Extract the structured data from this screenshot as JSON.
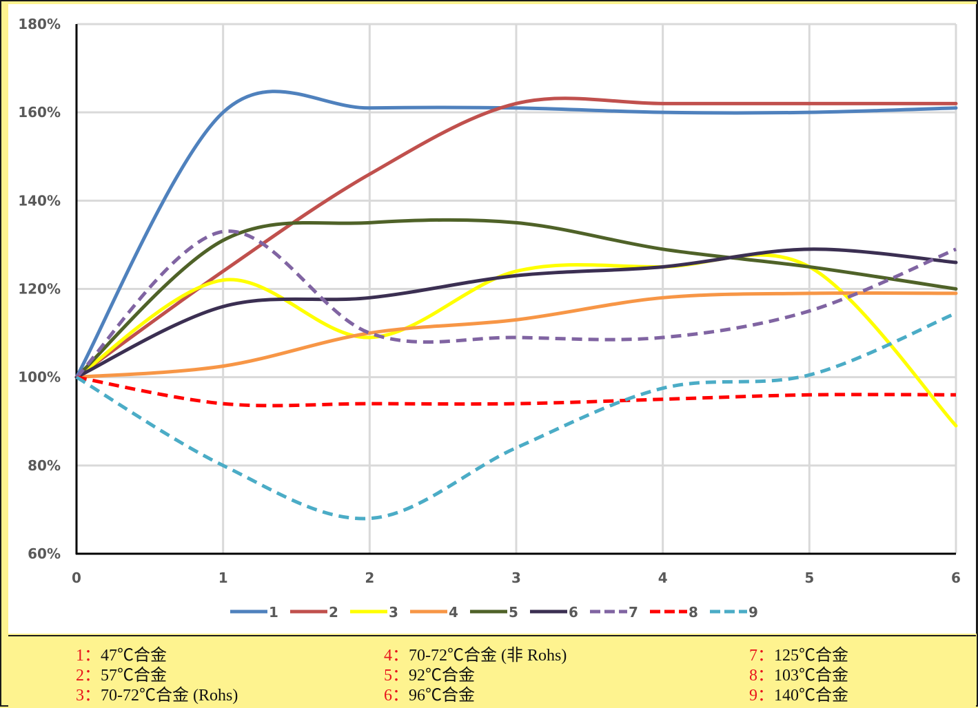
{
  "chart_data": {
    "type": "line",
    "title": "",
    "xlabel": "",
    "ylabel": "",
    "x": [
      0,
      1,
      2,
      3,
      4,
      5,
      6
    ],
    "xlim": [
      0,
      6
    ],
    "ylim": [
      0.6,
      1.8
    ],
    "y_ticks": [
      0.6,
      0.8,
      1.0,
      1.2,
      1.4,
      1.6,
      1.8
    ],
    "y_tick_labels": [
      "60%",
      "80%",
      "100%",
      "120%",
      "140%",
      "160%",
      "180%"
    ],
    "x_tick_labels": [
      "0",
      "1",
      "2",
      "3",
      "4",
      "5",
      "6"
    ],
    "grid": true,
    "smooth": true,
    "legend_position": "bottom",
    "series": [
      {
        "name": "1",
        "color": "#4f81bd",
        "style": "solid",
        "values": [
          1.0,
          1.6,
          1.61,
          1.61,
          1.6,
          1.6,
          1.61
        ]
      },
      {
        "name": "2",
        "color": "#c0504d",
        "style": "solid",
        "values": [
          1.0,
          1.24,
          1.46,
          1.62,
          1.62,
          1.62,
          1.62
        ]
      },
      {
        "name": "3",
        "color": "#ffff00",
        "style": "solid",
        "values": [
          1.0,
          1.22,
          1.09,
          1.24,
          1.25,
          1.25,
          0.89
        ]
      },
      {
        "name": "4",
        "color": "#f79646",
        "style": "solid",
        "values": [
          1.0,
          1.025,
          1.1,
          1.13,
          1.18,
          1.19,
          1.19
        ]
      },
      {
        "name": "5",
        "color": "#4f6228",
        "style": "solid",
        "values": [
          1.0,
          1.31,
          1.35,
          1.35,
          1.29,
          1.25,
          1.2
        ]
      },
      {
        "name": "6",
        "color": "#3b2f52",
        "style": "solid",
        "values": [
          1.0,
          1.16,
          1.18,
          1.23,
          1.25,
          1.29,
          1.26
        ]
      },
      {
        "name": "7",
        "color": "#8064a2",
        "style": "dashed",
        "values": [
          1.0,
          1.33,
          1.1,
          1.09,
          1.09,
          1.15,
          1.29
        ]
      },
      {
        "name": "8",
        "color": "#ff0000",
        "style": "dashed",
        "values": [
          1.0,
          0.94,
          0.94,
          0.94,
          0.95,
          0.96,
          0.96
        ]
      },
      {
        "name": "9",
        "color": "#4bacc6",
        "style": "dashed",
        "values": [
          1.0,
          0.8,
          0.68,
          0.84,
          0.975,
          1.005,
          1.145
        ]
      }
    ]
  },
  "notes": [
    {
      "num": "1：",
      "text": "47℃合金"
    },
    {
      "num": "2：",
      "text": "57℃合金"
    },
    {
      "num": "3：",
      "text": "70-72℃合金 (Rohs)"
    },
    {
      "num": "4：",
      "text": "70-72℃合金 (非 Rohs)"
    },
    {
      "num": "5：",
      "text": "92℃合金"
    },
    {
      "num": "6：",
      "text": "96℃合金"
    },
    {
      "num": "7：",
      "text": "125℃合金"
    },
    {
      "num": "8：",
      "text": "103℃合金"
    },
    {
      "num": "9：",
      "text": "140℃合金"
    }
  ]
}
